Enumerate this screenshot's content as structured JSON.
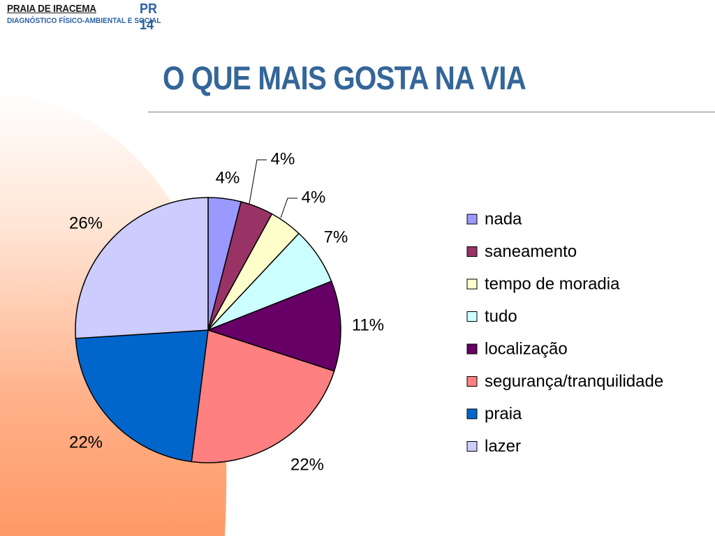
{
  "header": {
    "org_name": "PRAIA DE IRACEMA",
    "doc_code": "PR 14",
    "subtitle": "DIAGNÓSTICO FÍSICO-AMBIENTAL E SOCIAL"
  },
  "slide": {
    "title": "O QUE MAIS GOSTA NA VIA"
  },
  "theme": {
    "title_color": "#336699",
    "header_color": "#2b62a3",
    "swoosh_color": "#ff9966"
  },
  "chart_data": {
    "type": "pie",
    "title": "",
    "start_angle_deg": 0,
    "direction": "clockwise",
    "legend_position": "right",
    "slices": [
      {
        "label": "nada",
        "value": 4,
        "display": "4%",
        "color": "#9999ff"
      },
      {
        "label": "saneamento",
        "value": 4,
        "display": "4%",
        "color": "#993366"
      },
      {
        "label": "tempo de moradia",
        "value": 4,
        "display": "4%",
        "color": "#ffffcc"
      },
      {
        "label": "tudo",
        "value": 7,
        "display": "7%",
        "color": "#ccffff"
      },
      {
        "label": "localização",
        "value": 11,
        "display": "11%",
        "color": "#660066"
      },
      {
        "label": "segurança/tranquilidade",
        "value": 22,
        "display": "22%",
        "color": "#ff8080"
      },
      {
        "label": "praia",
        "value": 22,
        "display": "22%",
        "color": "#0066cc"
      },
      {
        "label": "lazer",
        "value": 26,
        "display": "26%",
        "color": "#ccccff"
      }
    ]
  }
}
